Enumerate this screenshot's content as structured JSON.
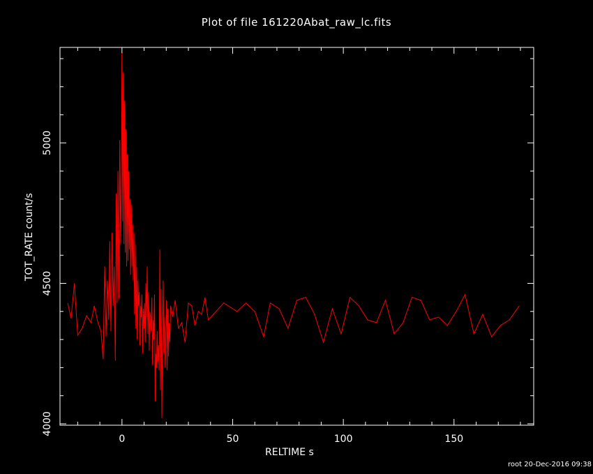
{
  "chart_data": {
    "type": "line",
    "title": "Plot of file 161220Abat_raw_lc.fits",
    "xlabel": "RELTIME  s",
    "ylabel": "TOT_RATE  count/s",
    "footer": "root 20-Dec-2016 09:38",
    "xlim": [
      -28,
      186
    ],
    "ylim": [
      3995,
      5340
    ],
    "x_ticks": [
      0,
      50,
      100,
      150
    ],
    "y_ticks": [
      4000,
      4500,
      5000
    ],
    "line_color": "#ff0000",
    "axis_color": "#ffffff",
    "background": "#000000",
    "series": [
      {
        "x": [
          -24.5,
          -23,
          -21.5,
          -20,
          -18,
          -16,
          -14,
          -12.5,
          -11,
          -9.5,
          -8.5,
          -7.8,
          -7.2,
          -6.6,
          -6,
          -5.5,
          -5,
          -4.5,
          -4,
          -3.5,
          -3,
          -2.6,
          -2.2,
          -1.8,
          -1.4,
          -1,
          -0.6,
          -0.3,
          0,
          0.3,
          0.6,
          0.9,
          1.2,
          1.5,
          1.8,
          2.1,
          2.4,
          2.7,
          3,
          3.3,
          3.6,
          3.9,
          4.2,
          4.5,
          4.8,
          5.1,
          5.4,
          5.7,
          6,
          6.3,
          6.6,
          6.9,
          7.2,
          7.5,
          7.8,
          8.1,
          8.4,
          8.7,
          9,
          9.3,
          9.6,
          9.9,
          10.2,
          10.5,
          10.8,
          11.1,
          11.4,
          11.7,
          12,
          12.3,
          12.6,
          12.9,
          13.2,
          13.5,
          13.8,
          14.1,
          14.4,
          14.7,
          15,
          15.3,
          15.6,
          15.9,
          16.2,
          16.5,
          16.8,
          17.1,
          17.4,
          17.7,
          18,
          18.3,
          18.6,
          18.9,
          19.2,
          19.5,
          19.8,
          20.1,
          20.4,
          20.7,
          21,
          21.3,
          21.6,
          22,
          23,
          24,
          25.5,
          27,
          28.5,
          30,
          31.5,
          33,
          34.5,
          36,
          37.5,
          39,
          46,
          52,
          56,
          60,
          64,
          67,
          71,
          75,
          79,
          83,
          87,
          91,
          95,
          99,
          103,
          107,
          111,
          115,
          119,
          123,
          127,
          131,
          135,
          139,
          143,
          147,
          151,
          155,
          159,
          163,
          167,
          171,
          175,
          179.5
        ],
        "y": [
          4430,
          4375,
          4500,
          4315,
          4340,
          4385,
          4360,
          4420,
          4365,
          4330,
          4230,
          4560,
          4310,
          4510,
          4370,
          4650,
          4330,
          4680,
          4420,
          4560,
          4225,
          4820,
          4430,
          4900,
          4445,
          5010,
          4640,
          4850,
          5320,
          4720,
          5250,
          4640,
          5150,
          4610,
          5050,
          4560,
          4960,
          4580,
          4900,
          4620,
          4800,
          4530,
          4780,
          4560,
          4710,
          4510,
          4680,
          4390,
          4640,
          4340,
          4560,
          4300,
          4510,
          4420,
          4470,
          4280,
          4420,
          4380,
          4460,
          4250,
          4410,
          4340,
          4430,
          4290,
          4500,
          4380,
          4560,
          4320,
          4470,
          4260,
          4400,
          4380,
          4330,
          4450,
          4210,
          4370,
          4300,
          4460,
          4080,
          4250,
          4200,
          4330,
          4220,
          4280,
          4190,
          4620,
          4120,
          4480,
          4020,
          4310,
          4510,
          4250,
          4380,
          4200,
          4330,
          4440,
          4190,
          4410,
          4240,
          4360,
          4290,
          4420,
          4380,
          4440,
          4340,
          4360,
          4290,
          4430,
          4420,
          4350,
          4400,
          4390,
          4450,
          4370,
          4430,
          4400,
          4430,
          4400,
          4310,
          4430,
          4410,
          4340,
          4440,
          4450,
          4390,
          4290,
          4410,
          4320,
          4450,
          4420,
          4370,
          4360,
          4440,
          4320,
          4360,
          4450,
          4440,
          4370,
          4380,
          4350,
          4400,
          4460,
          4320,
          4390,
          4310,
          4350,
          4370,
          4420
        ]
      }
    ]
  }
}
